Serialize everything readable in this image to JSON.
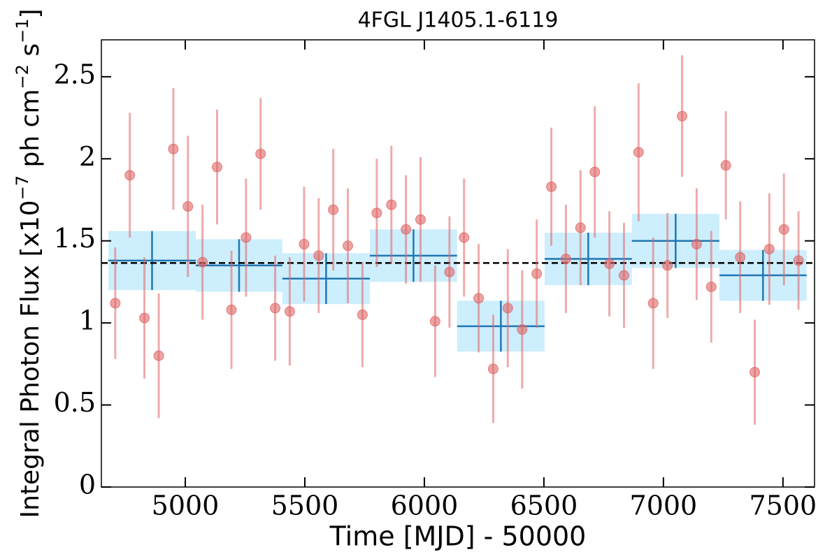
{
  "chart_data": {
    "type": "scatter",
    "title": "4FGL J1405.1-6119",
    "xlabel": "Time [MJD] - 50000",
    "ylabel": [
      "Integral Photon Flux [x10",
      "−7",
      " ph cm",
      "−2",
      " s",
      "−1",
      "]"
    ],
    "x": [
      4707,
      4768,
      4829,
      4889,
      4950,
      5011,
      5072,
      5133,
      5193,
      5254,
      5315,
      5376,
      5437,
      5497,
      5558,
      5619,
      5680,
      5741,
      5801,
      5862,
      5923,
      5984,
      6045,
      6105,
      6166,
      6227,
      6288,
      6349,
      6409,
      6470,
      6531,
      6592,
      6653,
      6713,
      6774,
      6835,
      6896,
      6957,
      7017,
      7078,
      7139,
      7200,
      7261,
      7321,
      7382,
      7443,
      7504,
      7565
    ],
    "values": [
      1.12,
      1.9,
      1.03,
      0.8,
      2.06,
      1.71,
      1.37,
      1.95,
      1.08,
      1.52,
      2.03,
      1.09,
      1.07,
      1.48,
      1.41,
      1.69,
      1.47,
      1.05,
      1.67,
      1.72,
      1.57,
      1.63,
      1.01,
      1.31,
      1.52,
      1.15,
      0.72,
      1.09,
      0.96,
      1.3,
      1.83,
      1.39,
      1.58,
      1.92,
      1.36,
      1.29,
      2.04,
      1.12,
      1.35,
      2.26,
      1.48,
      1.22,
      1.96,
      1.4,
      0.7,
      1.45,
      1.57,
      1.38
    ],
    "errors": [
      0.34,
      0.38,
      0.37,
      0.38,
      0.37,
      0.43,
      0.35,
      0.35,
      0.36,
      0.36,
      0.34,
      0.32,
      0.33,
      0.35,
      0.35,
      0.37,
      0.35,
      0.32,
      0.33,
      0.36,
      0.33,
      0.38,
      0.34,
      0.34,
      0.36,
      0.33,
      0.33,
      0.36,
      0.36,
      0.33,
      0.36,
      0.33,
      0.35,
      0.4,
      0.32,
      0.32,
      0.42,
      0.4,
      0.32,
      0.37,
      0.34,
      0.34,
      0.33,
      0.34,
      0.32,
      0.34,
      0.34,
      0.3
    ],
    "color": "#e06666",
    "bins": {
      "edges": [
        4678,
        5044,
        5406,
        5772,
        6137,
        6503,
        6868,
        7234,
        7599
      ],
      "values": [
        1.38,
        1.35,
        1.27,
        1.41,
        0.98,
        1.39,
        1.5,
        1.29
      ],
      "errors": [
        0.18,
        0.16,
        0.155,
        0.16,
        0.155,
        0.16,
        0.165,
        0.155
      ],
      "color": "#1f77b4",
      "band_color": "#cdeefd"
    },
    "mean": 1.365,
    "xlim": [
      4649,
      7632
    ],
    "ylim": [
      0,
      2.725
    ],
    "xticks": [
      5000,
      5500,
      6000,
      6500,
      7000,
      7500
    ],
    "yticks": [
      0,
      0.5,
      1,
      1.5,
      2,
      2.5
    ]
  }
}
